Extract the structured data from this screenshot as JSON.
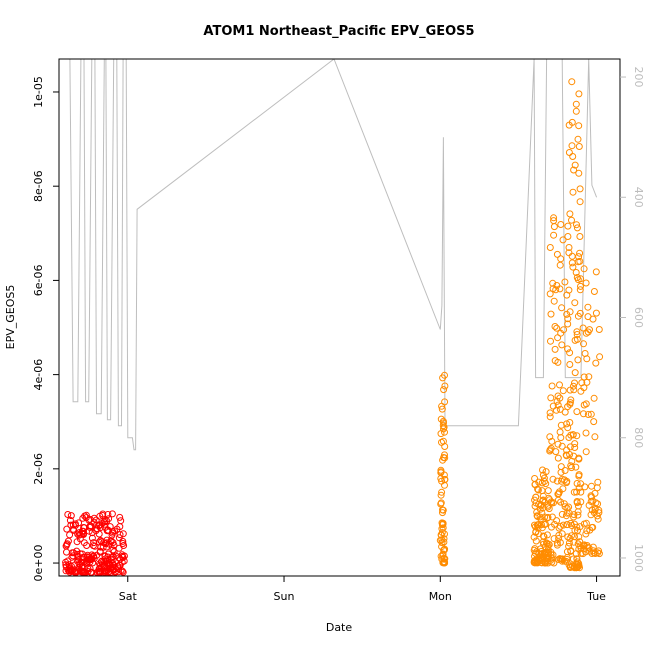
{
  "chart_data": {
    "type": "scatter",
    "title": "ATOM1 Northeast_Pacific EPV_GEOS5",
    "xlabel": "Date",
    "ylabel": "EPV_GEOS5",
    "x_ticks": [
      {
        "label": "Sat",
        "day": 1
      },
      {
        "label": "Sun",
        "day": 2
      },
      {
        "label": "Mon",
        "day": 3
      },
      {
        "label": "Tue",
        "day": 4
      }
    ],
    "xlim_days": [
      0.56,
      4.15
    ],
    "ylim": [
      -2.75e-07,
      1.07e-05
    ],
    "y_ticks": [
      {
        "value": 0,
        "label": "0e+00"
      },
      {
        "value": 2e-06,
        "label": "2e-06"
      },
      {
        "value": 4e-06,
        "label": "4e-06"
      },
      {
        "value": 6e-06,
        "label": "6e-06"
      },
      {
        "value": 8e-06,
        "label": "8e-06"
      },
      {
        "value": 1e-05,
        "label": "1e-05"
      }
    ],
    "y2_axis": {
      "label": "",
      "reversed": true,
      "ylim": [
        1030,
        170
      ],
      "ticks": [
        {
          "value": 200,
          "label": "200"
        },
        {
          "value": 400,
          "label": "400"
        },
        {
          "value": 600,
          "label": "600"
        },
        {
          "value": 800,
          "label": "800"
        },
        {
          "value": 1000,
          "label": "1000"
        }
      ]
    },
    "colors": {
      "series_red": "#ff0000",
      "series_orange": "#ff8c00",
      "pressure_line": "#bebebe",
      "axis": "#000000"
    },
    "series": [
      {
        "color": "#ff0000",
        "marker": "open-circle",
        "clusters": [
          {
            "day_start": 0.6,
            "day_end": 0.98,
            "y_min": -2e-07,
            "y_max": 1.05e-06,
            "density": 260
          }
        ]
      },
      {
        "color": "#ff8c00",
        "marker": "open-circle",
        "clusters": [
          {
            "day_start": 3.0,
            "day_end": 3.03,
            "y_min": 0.0,
            "y_max": 4e-06,
            "density": 70
          },
          {
            "day_start": 3.6,
            "day_end": 3.7,
            "y_min": 0.0,
            "y_max": 2.1e-06,
            "density": 120
          },
          {
            "day_start": 3.7,
            "day_end": 3.82,
            "y_min": 0.0,
            "y_max": 7.7e-06,
            "density": 130
          },
          {
            "day_start": 3.82,
            "day_end": 3.9,
            "y_min": -1e-07,
            "y_max": 1.03e-05,
            "density": 140
          },
          {
            "day_start": 3.9,
            "day_end": 4.02,
            "y_min": 2e-07,
            "y_max": 6.3e-06,
            "density": 80
          }
        ]
      }
    ],
    "pressure_line_points": [
      [
        0.63,
        170
      ],
      [
        0.65,
        740
      ],
      [
        0.68,
        740
      ],
      [
        0.7,
        170
      ],
      [
        0.72,
        170
      ],
      [
        0.73,
        740
      ],
      [
        0.75,
        740
      ],
      [
        0.77,
        170
      ],
      [
        0.79,
        170
      ],
      [
        0.8,
        760
      ],
      [
        0.83,
        760
      ],
      [
        0.85,
        170
      ],
      [
        0.86,
        170
      ],
      [
        0.87,
        770
      ],
      [
        0.89,
        770
      ],
      [
        0.91,
        170
      ],
      [
        0.93,
        170
      ],
      [
        0.94,
        780
      ],
      [
        0.96,
        780
      ],
      [
        0.97,
        170
      ],
      [
        0.99,
        170
      ],
      [
        1.0,
        800
      ],
      [
        1.03,
        800
      ],
      [
        1.04,
        820
      ],
      [
        1.05,
        820
      ],
      [
        1.06,
        420
      ],
      [
        2.32,
        170
      ],
      [
        3.0,
        620
      ],
      [
        3.01,
        580
      ],
      [
        3.02,
        300
      ],
      [
        3.03,
        780
      ],
      [
        3.5,
        780
      ],
      [
        3.6,
        170
      ],
      [
        3.61,
        700
      ],
      [
        3.66,
        700
      ],
      [
        3.68,
        170
      ],
      [
        3.78,
        170
      ],
      [
        3.8,
        700
      ],
      [
        3.9,
        700
      ],
      [
        3.95,
        170
      ],
      [
        3.97,
        380
      ],
      [
        4.0,
        400
      ]
    ]
  }
}
